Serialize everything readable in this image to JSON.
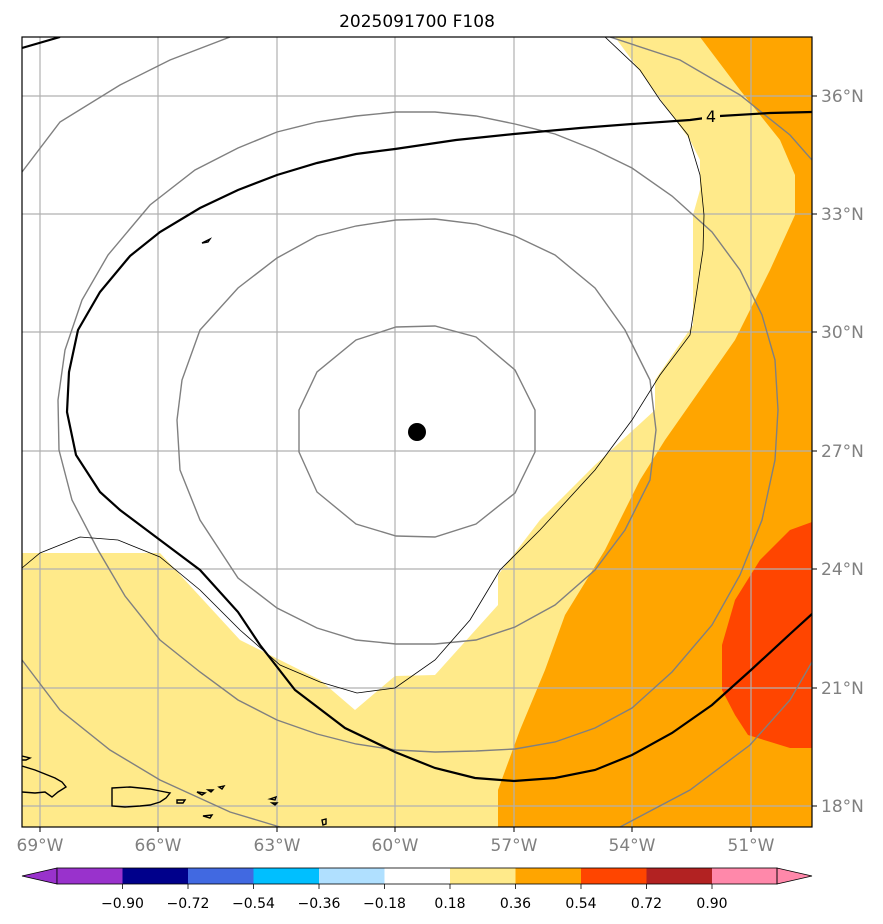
{
  "title": "2025091700 F108",
  "longitude_ticks": [
    "69°W",
    "66°W",
    "63°W",
    "60°W",
    "57°W",
    "54°W",
    "51°W"
  ],
  "latitude_ticks": [
    "36°N",
    "33°N",
    "30°N",
    "27°N",
    "24°N",
    "21°N",
    "18°N"
  ],
  "contour_label": "4",
  "storm_center": {
    "lon": -59.5,
    "lat": 27.5,
    "marker": "black-dot"
  },
  "colorbar": {
    "labels": [
      "−0.90",
      "−0.72",
      "−0.54",
      "−0.36",
      "−0.18",
      "0.18",
      "0.36",
      "0.54",
      "0.72",
      "0.90"
    ],
    "colors": [
      "#9932cc",
      "#00008b",
      "#4169e1",
      "#00bfff",
      "#b0e0ff",
      "#ffffff",
      "#ffea8a",
      "#ffa500",
      "#ff4500",
      "#b22222",
      "#ff88aa"
    ],
    "extend": "both"
  },
  "colors": {
    "fill_pale_yellow": "#ffea8a",
    "fill_orange": "#ffa500",
    "fill_red_orange": "#ff4500",
    "gridline": "#b0b0b0",
    "grey_contour": "#808080",
    "black_contour": "#000000"
  }
}
